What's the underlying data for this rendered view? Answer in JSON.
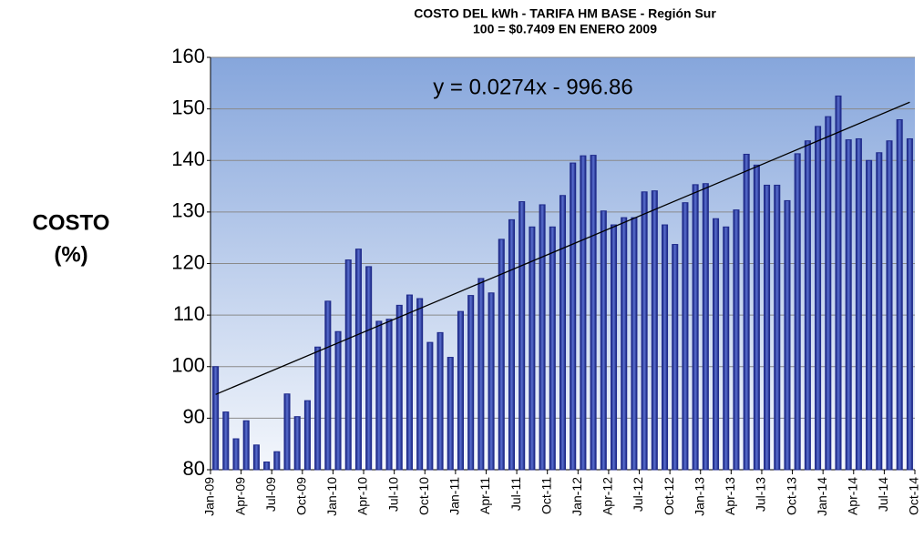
{
  "chart_data": {
    "type": "bar",
    "title": "COSTO DEL kWh - TARIFA HM BASE - Región Sur",
    "subtitle": "100 = $0.7409 EN ENERO 2009",
    "ylabel": [
      "COSTO",
      "(%)"
    ],
    "annotation": "y = 0.0274x - 996.86",
    "categories": [
      "Jan-09",
      null,
      null,
      "Apr-09",
      null,
      null,
      "Jul-09",
      null,
      null,
      "Oct-09",
      null,
      null,
      "Jan-10",
      null,
      null,
      "Apr-10",
      null,
      null,
      "Jul-10",
      null,
      null,
      "Oct-10",
      null,
      null,
      "Jan-11",
      null,
      null,
      "Apr-11",
      null,
      null,
      "Jul-11",
      null,
      null,
      "Oct-11",
      null,
      null,
      "Jan-12",
      null,
      null,
      "Apr-12",
      null,
      null,
      "Jul-12",
      null,
      null,
      "Oct-12",
      null,
      null,
      "Jan-13",
      null,
      null,
      "Apr-13",
      null,
      null,
      "Jul-13",
      null,
      null,
      "Oct-13",
      null,
      null,
      "Jan-14",
      null,
      null,
      "Apr-14",
      null,
      null,
      "Jul-14",
      null,
      null,
      "Oct-14"
    ],
    "values": [
      100,
      91.2,
      86,
      89.5,
      84.8,
      81.5,
      83.5,
      94.7,
      90.3,
      93.4,
      103.8,
      112.7,
      106.8,
      120.7,
      122.8,
      119.4,
      108.8,
      109.2,
      111.9,
      113.9,
      113.2,
      104.7,
      106.6,
      101.8,
      110.7,
      113.8,
      117.1,
      114.3,
      124.7,
      128.5,
      132,
      127.1,
      131.4,
      127.1,
      133.2,
      139.5,
      140.9,
      141,
      130.2,
      127.5,
      128.9,
      128.9,
      133.9,
      134.1,
      127.5,
      123.7,
      131.8,
      135.3,
      135.5,
      128.7,
      127.1,
      130.4,
      141.2,
      139.1,
      135.2,
      135.2,
      132.2,
      141.3,
      143.8,
      146.6,
      148.5,
      152.5,
      144,
      144.2,
      140,
      141.5,
      143.8,
      147.9,
      144.2,
      null
    ],
    "trend": [
      94.6,
      151.3
    ],
    "color": "#1f2a8c",
    "ylim": [
      80,
      160
    ],
    "yticks": [
      80,
      90,
      100,
      110,
      120,
      130,
      140,
      150,
      160
    ],
    "grid": true
  }
}
